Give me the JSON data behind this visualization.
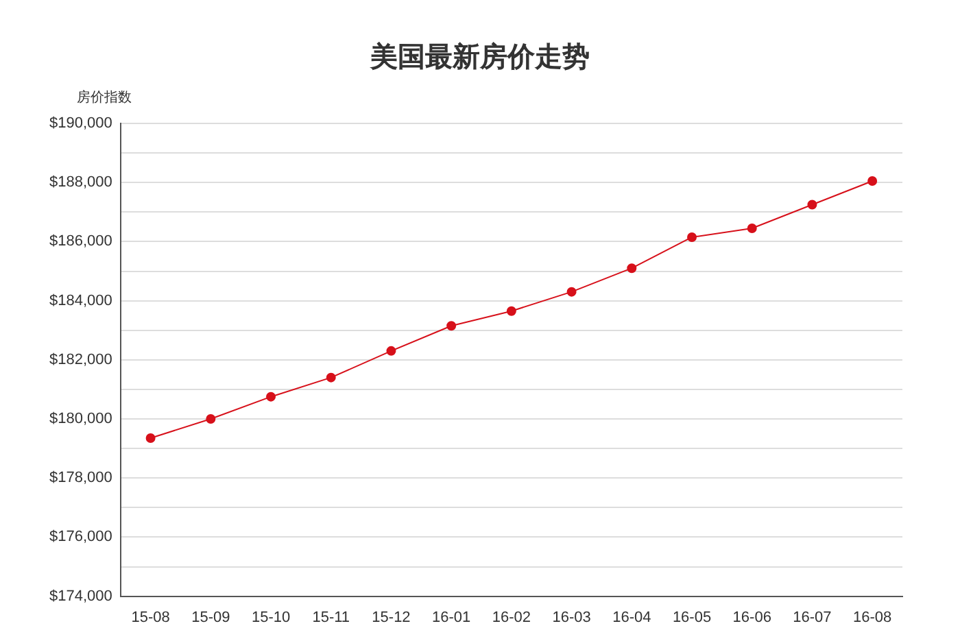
{
  "chart_data": {
    "type": "line",
    "title": "美国最新房价走势",
    "ylabel": "房价指数",
    "categories": [
      "15-08",
      "15-09",
      "15-10",
      "15-11",
      "15-12",
      "16-01",
      "16-02",
      "16-03",
      "16-04",
      "16-05",
      "16-06",
      "16-07",
      "16-08"
    ],
    "series": [
      {
        "color": "#d7101a",
        "values": [
          179350,
          180000,
          180750,
          181400,
          182300,
          183150,
          183650,
          184300,
          185100,
          186150,
          186450,
          187250,
          188050
        ]
      }
    ],
    "ylim": [
      174000,
      190000
    ],
    "yticks": [
      {
        "value": 174000,
        "label": "$174,000"
      },
      {
        "value": 175000,
        "label": null
      },
      {
        "value": 176000,
        "label": "$176,000"
      },
      {
        "value": 177000,
        "label": null
      },
      {
        "value": 178000,
        "label": "$178,000"
      },
      {
        "value": 179000,
        "label": null
      },
      {
        "value": 180000,
        "label": "$180,000"
      },
      {
        "value": 181000,
        "label": null
      },
      {
        "value": 182000,
        "label": "$182,000"
      },
      {
        "value": 183000,
        "label": null
      },
      {
        "value": 184000,
        "label": "$184,000"
      },
      {
        "value": 185000,
        "label": null
      },
      {
        "value": 186000,
        "label": "$186,000"
      },
      {
        "value": 187000,
        "label": null
      },
      {
        "value": 188000,
        "label": "$188,000"
      },
      {
        "value": 189000,
        "label": null
      },
      {
        "value": 190000,
        "label": "$190,000"
      }
    ],
    "grid": "y",
    "legend": false,
    "marker": "circle",
    "line_style": "solid"
  }
}
